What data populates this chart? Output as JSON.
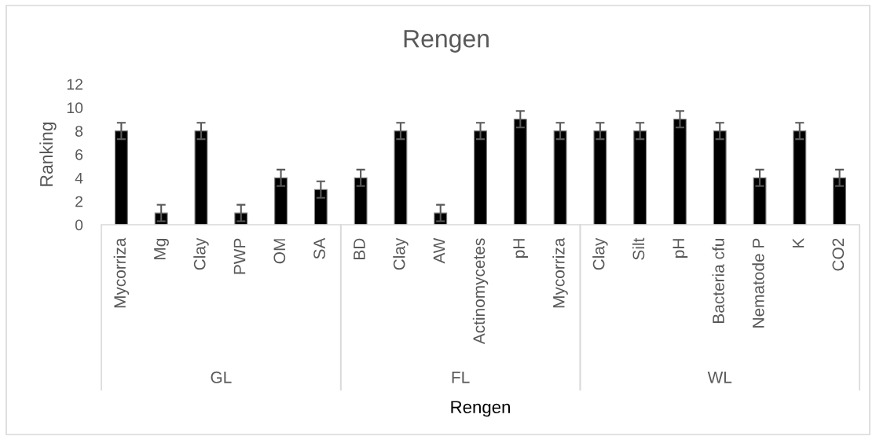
{
  "chart_data": [
    {
      "type": "bar",
      "xlabel": "GL",
      "ylabel": "Ranking",
      "categories": [
        "Mycorriza",
        "Mg",
        "Clay",
        "PWP",
        "OM",
        "SA"
      ],
      "values": [
        8,
        1,
        8,
        1,
        4,
        3
      ],
      "errors": [
        0.7,
        0.7,
        0.7,
        0.7,
        0.7,
        0.7
      ],
      "color": "#000000",
      "ylim": [
        0,
        12
      ],
      "yticks": [
        0,
        2,
        4,
        6,
        8,
        10,
        12
      ]
    },
    {
      "type": "bar",
      "title": "Rengen",
      "xlabel": "FL",
      "annotations": [
        "Rengen"
      ],
      "categories": [
        "BD",
        "Clay",
        "AW",
        "Actinomycetes",
        "pH",
        "Mycorriza"
      ],
      "values": [
        4,
        8,
        1,
        8,
        9,
        8
      ],
      "errors": [
        0.7,
        0.7,
        0.7,
        0.7,
        0.7,
        0.7
      ],
      "color": "#000000",
      "ylim": [
        0,
        12
      ],
      "tick_labels": "x"
    },
    {
      "type": "bar",
      "xlabel": "WL",
      "categories": [
        "Clay",
        "Silt",
        "pH",
        "Bacteria cfu",
        "Nematode P",
        "K",
        "CO2"
      ],
      "values": [
        8,
        8,
        9,
        8,
        4,
        8,
        4
      ],
      "errors": [
        0.7,
        0.7,
        0.7,
        0.7,
        0.7,
        0.7,
        0.7
      ],
      "color": "#000000",
      "ylim": [
        0,
        12
      ],
      "tick_labels": "x"
    }
  ]
}
